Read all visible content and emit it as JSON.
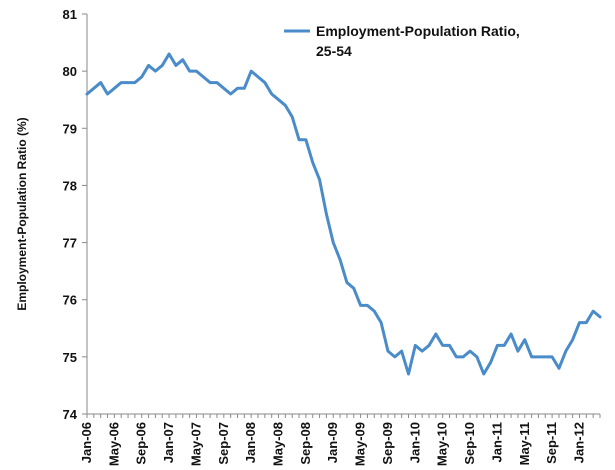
{
  "chart_data": {
    "type": "line",
    "title": "",
    "xlabel": "",
    "ylabel": "Employment-Population Ratio (%)",
    "ylim": [
      74,
      81
    ],
    "yticks": [
      74,
      75,
      76,
      77,
      78,
      79,
      80,
      81
    ],
    "grid": false,
    "legend_position": "top-right",
    "legend_lines": [
      "Employment-Population Ratio,",
      "25-54"
    ],
    "x_tick_labels": [
      "Jan-06",
      "May-06",
      "Sep-06",
      "Jan-07",
      "May-07",
      "Sep-07",
      "Jan-08",
      "May-08",
      "Sep-08",
      "Jan-09",
      "May-09",
      "Sep-09",
      "Jan-10",
      "May-10",
      "Sep-10",
      "Jan-11",
      "May-11",
      "Sep-11",
      "Jan-12"
    ],
    "series": [
      {
        "name": "Employment-Population Ratio, 25-54",
        "color": "#4a8bc9",
        "x_start": "Jan-06",
        "frequency": "monthly",
        "values": [
          79.6,
          79.7,
          79.8,
          79.6,
          79.7,
          79.8,
          79.8,
          79.8,
          79.9,
          80.1,
          80.0,
          80.1,
          80.3,
          80.1,
          80.2,
          80.0,
          80.0,
          79.9,
          79.8,
          79.8,
          79.7,
          79.6,
          79.7,
          79.7,
          80.0,
          79.9,
          79.8,
          79.6,
          79.5,
          79.4,
          79.2,
          78.8,
          78.8,
          78.4,
          78.1,
          77.5,
          77.0,
          76.7,
          76.3,
          76.2,
          75.9,
          75.9,
          75.8,
          75.6,
          75.1,
          75.0,
          75.1,
          74.7,
          75.2,
          75.1,
          75.2,
          75.4,
          75.2,
          75.2,
          75.0,
          75.0,
          75.1,
          75.0,
          74.7,
          74.9,
          75.2,
          75.2,
          75.4,
          75.1,
          75.3,
          75.0,
          75.0,
          75.0,
          75.0,
          74.8,
          75.1,
          75.3,
          75.6,
          75.6,
          75.8,
          75.7
        ]
      }
    ]
  }
}
